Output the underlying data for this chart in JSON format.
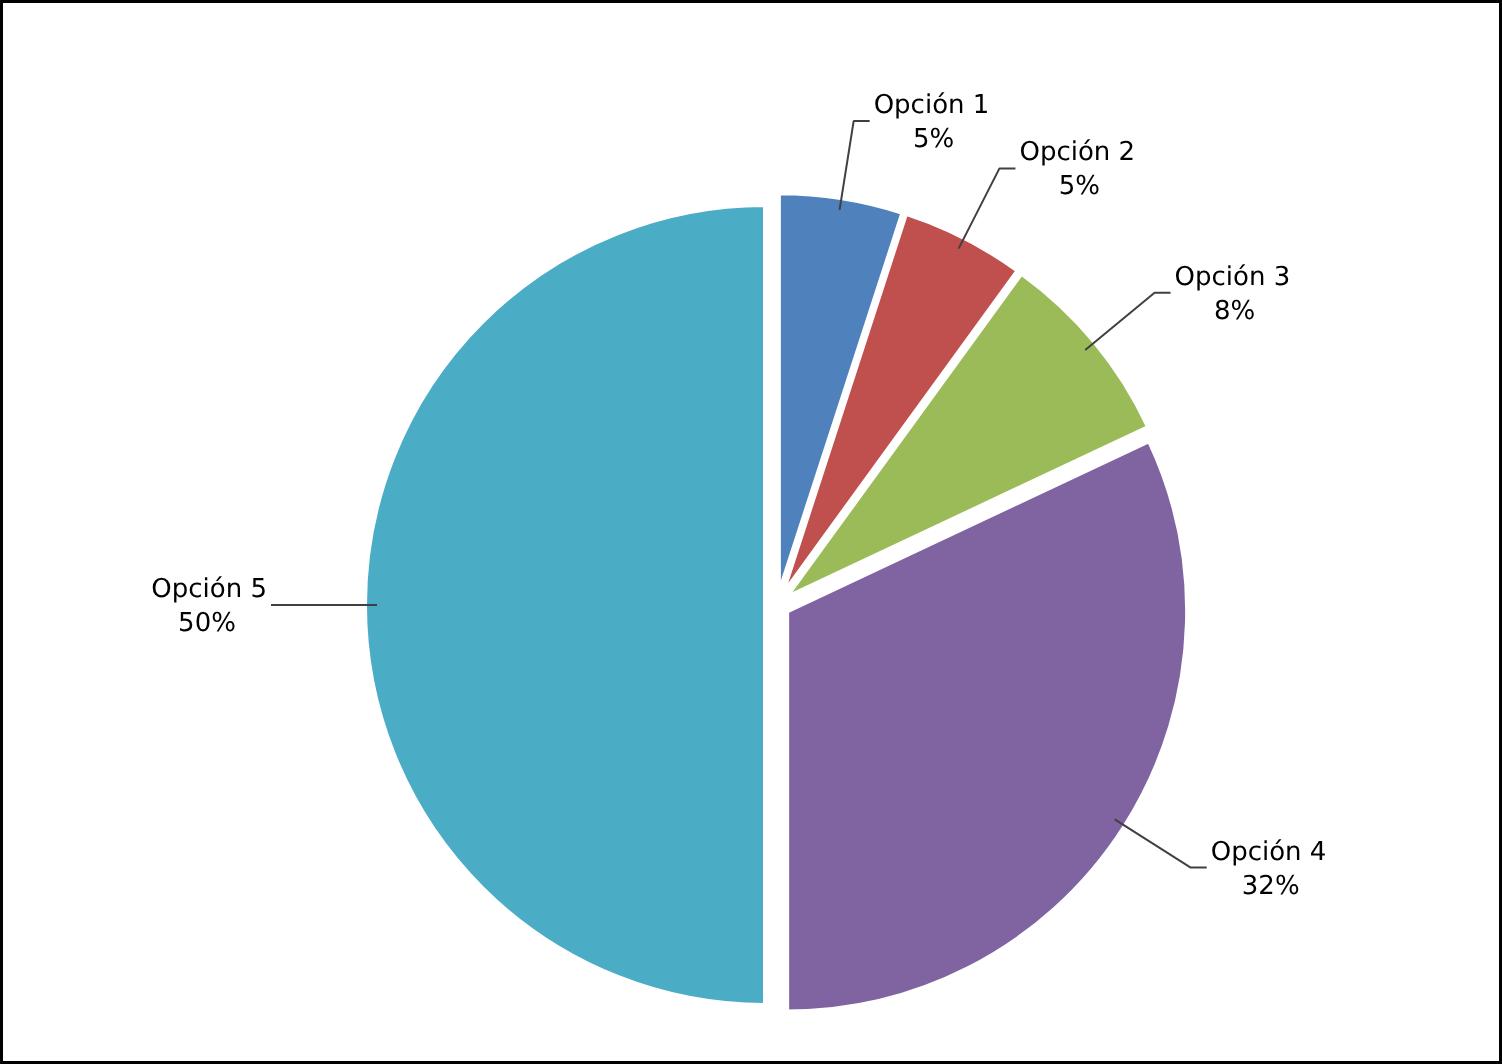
{
  "chart_data": {
    "type": "pie",
    "categories": [
      "Opción 1",
      "Opción 2",
      "Opción 3",
      "Opción 4",
      "Opción 5"
    ],
    "values": [
      5,
      5,
      8,
      32,
      50
    ],
    "value_labels": [
      "5%",
      "5%",
      "8%",
      "32%",
      "50%"
    ],
    "colors": [
      "#4f81bd",
      "#c0504d",
      "#9bbb59",
      "#8064a2",
      "#4bacc6"
    ]
  }
}
